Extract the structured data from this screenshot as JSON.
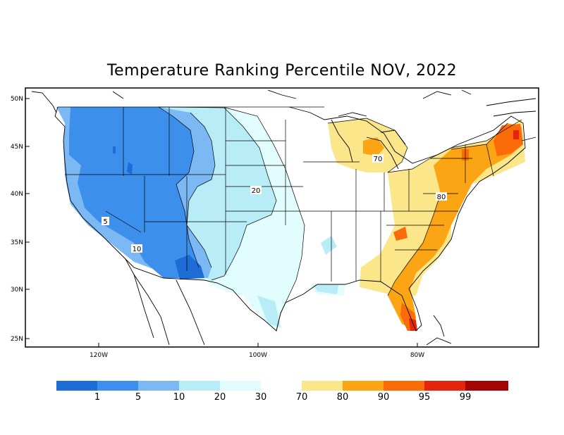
{
  "title": "Temperature Ranking Percentile NOV, 2022",
  "lat_labels": [
    "50N",
    "45N",
    "40N",
    "35N",
    "30N",
    "25N"
  ],
  "lon_labels": [
    "120W",
    "100W",
    "80W"
  ],
  "contour_labels": [
    "5",
    "10",
    "20",
    "70",
    "80"
  ],
  "colorbar": {
    "cold_colors": [
      "#1e6cd6",
      "#3d8fec",
      "#7cb8f4",
      "#b8ecf6",
      "#e2fdfd"
    ],
    "warm_colors": [
      "#fbe68a",
      "#fba414",
      "#fb6b0a",
      "#e6240b",
      "#a40404"
    ],
    "cold_labels": [
      "1",
      "5",
      "10",
      "20",
      "30"
    ],
    "warm_labels": [
      "70",
      "80",
      "90",
      "95",
      "99"
    ]
  }
}
